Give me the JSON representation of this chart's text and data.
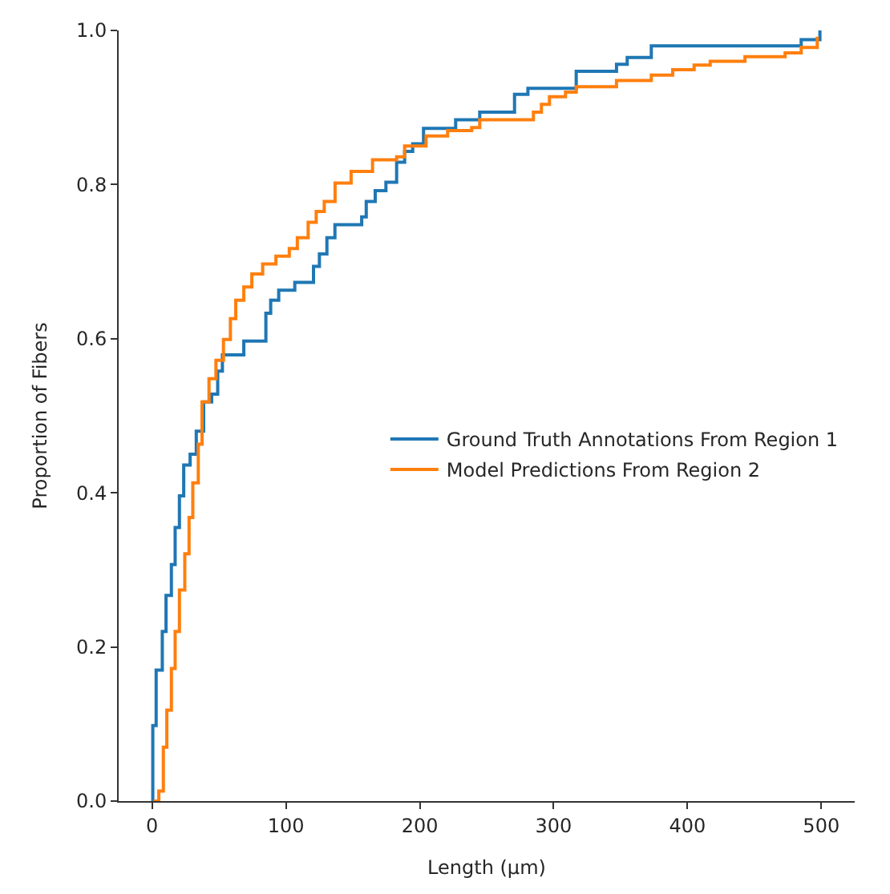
{
  "chart_data": {
    "type": "step",
    "xlabel": "Length (µm)",
    "ylabel": "Proportion of Fibers",
    "xlim": [
      -25,
      525
    ],
    "xticks": [
      0,
      100,
      200,
      300,
      400,
      500
    ],
    "ylim": [
      0,
      1
    ],
    "yticks": [
      {
        "value": 0,
        "label": "0.0"
      },
      {
        "value": 0.2,
        "label": "0.2"
      },
      {
        "value": 0.4,
        "label": "0.4"
      },
      {
        "value": 0.6,
        "label": "0.6"
      },
      {
        "value": 0.8,
        "label": "0.8"
      },
      {
        "value": 1,
        "label": "1.0"
      }
    ],
    "legend": "right",
    "marker": "none",
    "line_style": "solid",
    "series": [
      {
        "name": "Ground Truth Annotations From Region 1",
        "color": "#1f77b4",
        "x": [
          0,
          0.5,
          3,
          7.6,
          10.4,
          14.4,
          17.2,
          20.4,
          23.6,
          28.4,
          33,
          38.5,
          44.5,
          49,
          52.5,
          68.5,
          85,
          88.6,
          94.6,
          106.6,
          120.6,
          125,
          130.6,
          136.6,
          156.6,
          160,
          166.7,
          174.7,
          182.7,
          188.7,
          194.7,
          202.8,
          226.8,
          244.8,
          270.8,
          280.8,
          316.9,
          347,
          355,
          373,
          485,
          499
        ],
        "values": [
          0,
          0.098,
          0.17,
          0.22,
          0.267,
          0.307,
          0.355,
          0.396,
          0.436,
          0.45,
          0.48,
          0.518,
          0.528,
          0.558,
          0.579,
          0.597,
          0.633,
          0.65,
          0.663,
          0.673,
          0.694,
          0.71,
          0.731,
          0.748,
          0.758,
          0.778,
          0.792,
          0.803,
          0.829,
          0.843,
          0.853,
          0.873,
          0.884,
          0.894,
          0.917,
          0.925,
          0.947,
          0.956,
          0.965,
          0.98,
          0.988,
          1.0
        ]
      },
      {
        "name": "Model Predictions From Region 2",
        "color": "#ff7f0e",
        "x": [
          1,
          5,
          8.4,
          11,
          14.4,
          17.2,
          20.4,
          24.4,
          27.6,
          30.4,
          34.5,
          37.3,
          42.5,
          47.7,
          53.3,
          58.5,
          62.5,
          68.5,
          74.5,
          82.6,
          92.5,
          102.5,
          108.5,
          116.6,
          122.6,
          128.6,
          136.7,
          148.7,
          164.7,
          182.7,
          188.7,
          204.7,
          220.8,
          238.8,
          244.8,
          284.9,
          290.9,
          296.9,
          308.9,
          316.9,
          347,
          373,
          389,
          405,
          417,
          443,
          473,
          485,
          497
        ],
        "values": [
          0,
          0.013,
          0.07,
          0.118,
          0.172,
          0.22,
          0.274,
          0.321,
          0.368,
          0.413,
          0.463,
          0.518,
          0.548,
          0.572,
          0.599,
          0.626,
          0.65,
          0.667,
          0.684,
          0.697,
          0.707,
          0.717,
          0.731,
          0.751,
          0.765,
          0.778,
          0.802,
          0.817,
          0.832,
          0.836,
          0.85,
          0.863,
          0.87,
          0.874,
          0.884,
          0.894,
          0.904,
          0.914,
          0.92,
          0.927,
          0.935,
          0.942,
          0.949,
          0.955,
          0.96,
          0.966,
          0.971,
          0.978,
          0.992
        ]
      }
    ]
  }
}
